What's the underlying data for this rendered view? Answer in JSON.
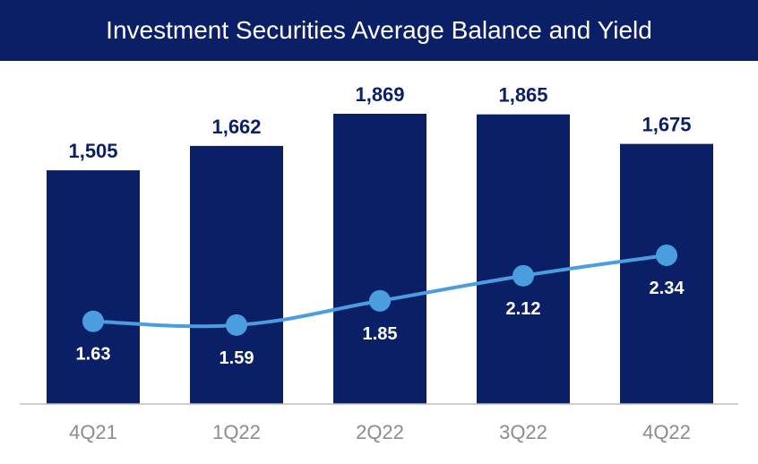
{
  "chart_data": {
    "type": "bar",
    "title": "Investment Securities Average Balance and Yield",
    "categories": [
      "4Q21",
      "1Q22",
      "2Q22",
      "3Q22",
      "4Q22"
    ],
    "series": [
      {
        "type": "bar",
        "values": [
          1505,
          1662,
          1869,
          1865,
          1675
        ],
        "labels": [
          "1,505",
          "1,662",
          "1,869",
          "1,865",
          "1,675"
        ]
      },
      {
        "type": "line",
        "values": [
          1.63,
          1.59,
          1.85,
          2.12,
          2.34
        ],
        "labels": [
          "1.63",
          "1.59",
          "1.85",
          "2.12",
          "2.34"
        ]
      }
    ],
    "bar_ylim": [
      0,
      1869
    ],
    "line_ylim": [
      0,
      4
    ],
    "grid": false,
    "legend": "none",
    "colors": {
      "title_bg": "#0b1f66",
      "bar": "#0b1f66",
      "line": "#4a9ee0",
      "axis_text": "#8c8c8c",
      "axis_line": "#bfbfbf"
    }
  }
}
